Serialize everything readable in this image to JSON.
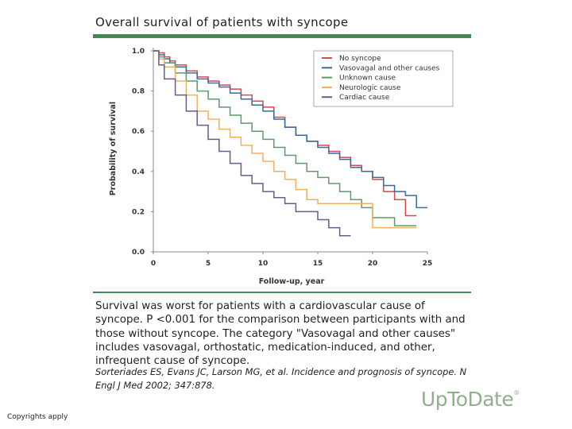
{
  "title": "Overall survival of patients with syncope",
  "colors": {
    "rule": "#3f8a55",
    "logo": "#8fb08a"
  },
  "caption": "Survival was worst for patients with a cardiovascular cause of syncope. P <0.001 for the comparison between participants with and those without syncope. The category \"Vasovagal and other causes\" includes vasovagal, orthostatic, medication-induced, and other, infrequent cause of syncope.",
  "citation": "Sorteriades ES, Evans JC, Larson MG, et al. Incidence and prognosis of syncope. N Engl J Med 2002; 347:878.",
  "logo": {
    "text": "UpToDate",
    "mark": "®"
  },
  "copyright": "Copyrights apply",
  "chart_data": {
    "type": "line",
    "step": true,
    "title": "",
    "xlabel": "Follow-up, year",
    "ylabel": "Probability of survival",
    "xlim": [
      0,
      25
    ],
    "ylim": [
      0,
      1.0
    ],
    "xticks": [
      0,
      5,
      10,
      15,
      20,
      25
    ],
    "xtick_labels": [
      "0",
      "5",
      "10",
      "15",
      "20",
      "25"
    ],
    "yticks": [
      0,
      0.2,
      0.4,
      0.6,
      0.8,
      1.0
    ],
    "ytick_labels": [
      "0.0",
      "0.2",
      "0.4",
      "0.6",
      "0.8",
      "1.0"
    ],
    "legend_position": "top-right",
    "series": [
      {
        "name": "No syncope",
        "color": "#d8484f",
        "x": [
          0,
          0.5,
          1,
          1.5,
          2,
          3,
          4,
          5,
          6,
          7,
          8,
          9,
          10,
          11,
          12,
          13,
          14,
          15,
          16,
          17,
          18,
          19,
          20,
          21,
          22,
          23,
          24
        ],
        "y": [
          1.0,
          0.99,
          0.97,
          0.95,
          0.93,
          0.9,
          0.87,
          0.85,
          0.83,
          0.81,
          0.78,
          0.75,
          0.72,
          0.67,
          0.62,
          0.58,
          0.55,
          0.53,
          0.5,
          0.47,
          0.43,
          0.4,
          0.36,
          0.3,
          0.26,
          0.18,
          0.18
        ]
      },
      {
        "name": "Vasovagal and other causes",
        "color": "#3a6c9a",
        "x": [
          0,
          0.5,
          1,
          1.5,
          2,
          3,
          4,
          5,
          6,
          7,
          8,
          9,
          10,
          11,
          12,
          13,
          14,
          15,
          16,
          17,
          18,
          19,
          20,
          21,
          22,
          23,
          24,
          25
        ],
        "y": [
          1.0,
          0.98,
          0.96,
          0.94,
          0.92,
          0.89,
          0.86,
          0.84,
          0.82,
          0.79,
          0.76,
          0.73,
          0.7,
          0.66,
          0.62,
          0.58,
          0.55,
          0.52,
          0.49,
          0.46,
          0.42,
          0.4,
          0.37,
          0.33,
          0.3,
          0.28,
          0.22,
          0.22
        ]
      },
      {
        "name": "Unknown cause",
        "color": "#5f9a6b",
        "x": [
          0,
          0.5,
          1,
          2,
          3,
          4,
          5,
          6,
          7,
          8,
          9,
          10,
          11,
          12,
          13,
          14,
          15,
          16,
          17,
          18,
          19,
          20,
          21,
          22,
          24
        ],
        "y": [
          1.0,
          0.97,
          0.94,
          0.89,
          0.85,
          0.8,
          0.76,
          0.72,
          0.68,
          0.64,
          0.6,
          0.56,
          0.52,
          0.48,
          0.44,
          0.4,
          0.37,
          0.34,
          0.3,
          0.26,
          0.22,
          0.17,
          0.17,
          0.13,
          0.13
        ]
      },
      {
        "name": "Neurologic cause",
        "color": "#f0b060",
        "x": [
          0,
          0.5,
          1,
          2,
          3,
          4,
          5,
          6,
          7,
          8,
          9,
          10,
          11,
          12,
          13,
          14,
          15,
          16,
          17,
          18,
          19,
          20,
          21,
          22,
          24
        ],
        "y": [
          1.0,
          0.96,
          0.92,
          0.85,
          0.78,
          0.7,
          0.66,
          0.61,
          0.57,
          0.53,
          0.49,
          0.45,
          0.4,
          0.36,
          0.31,
          0.26,
          0.24,
          0.24,
          0.24,
          0.24,
          0.24,
          0.12,
          0.12,
          0.12,
          0.12
        ]
      },
      {
        "name": "Cardiac cause",
        "color": "#6b5a8e",
        "x": [
          0,
          0.5,
          1,
          2,
          3,
          4,
          5,
          6,
          7,
          8,
          9,
          10,
          11,
          12,
          13,
          14,
          15,
          16,
          17,
          18
        ],
        "y": [
          1.0,
          0.93,
          0.86,
          0.78,
          0.7,
          0.63,
          0.56,
          0.5,
          0.44,
          0.38,
          0.34,
          0.3,
          0.27,
          0.24,
          0.2,
          0.2,
          0.16,
          0.12,
          0.08,
          0.08
        ]
      }
    ]
  }
}
